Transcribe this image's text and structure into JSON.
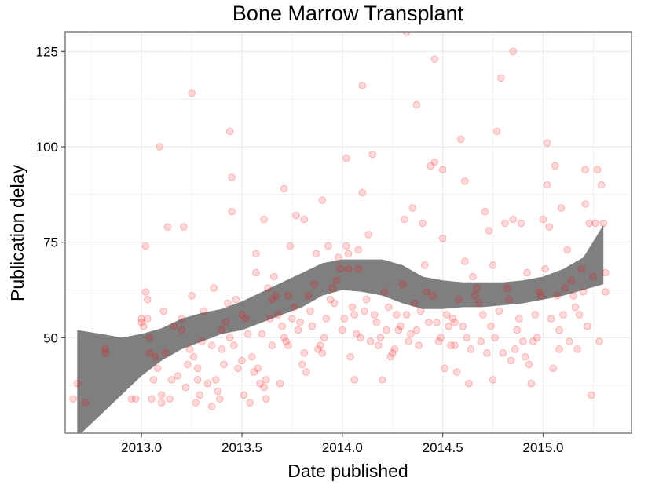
{
  "chart_data": {
    "type": "scatter",
    "title": "Bone Marrow Transplant",
    "xlabel": "Date published",
    "ylabel": "Publication delay",
    "xlim": [
      2012.62,
      2015.44
    ],
    "ylim": [
      25,
      130
    ],
    "x_ticks": [
      {
        "value": 2013.0,
        "label": "2013.0"
      },
      {
        "value": 2013.5,
        "label": "2013.5"
      },
      {
        "value": 2014.0,
        "label": "2014.0"
      },
      {
        "value": 2014.5,
        "label": "2014.5"
      },
      {
        "value": 2015.0,
        "label": "2015.0"
      }
    ],
    "y_ticks": [
      {
        "value": 50,
        "label": "50"
      },
      {
        "value": 75,
        "label": "75"
      },
      {
        "value": 100,
        "label": "100"
      },
      {
        "value": 125,
        "label": "125"
      }
    ],
    "grid": true,
    "legend": "none",
    "colors": {
      "points": "#ff0000",
      "band": "#7f7f7f",
      "panel_border": "#7f7f7f",
      "grid": "#ebebeb"
    },
    "smooth": {
      "x": [
        2012.68,
        2012.8,
        2012.9,
        2013.0,
        2013.1,
        2013.2,
        2013.3,
        2013.4,
        2013.5,
        2013.6,
        2013.7,
        2013.8,
        2013.9,
        2014.0,
        2014.1,
        2014.2,
        2014.3,
        2014.4,
        2014.5,
        2014.6,
        2014.7,
        2014.8,
        2014.9,
        2015.0,
        2015.1,
        2015.2,
        2015.3
      ],
      "lower": [
        24,
        30,
        35,
        40,
        44,
        47,
        49,
        51,
        52,
        54,
        56,
        58,
        61,
        62.5,
        62,
        61,
        59,
        57.5,
        57.5,
        58,
        58,
        58.5,
        59,
        60,
        61,
        62.5,
        64
      ],
      "upper": [
        52,
        51,
        50,
        51,
        52.5,
        55,
        56.5,
        57.5,
        59.5,
        62,
        64.5,
        67,
        69.5,
        70.5,
        70.5,
        70.5,
        69,
        66,
        65,
        64.5,
        64.5,
        64.5,
        65,
        66,
        68,
        71,
        79.5
      ]
    },
    "points": [
      [
        2012.66,
        34
      ],
      [
        2012.68,
        38
      ],
      [
        2012.72,
        33
      ],
      [
        2012.82,
        47
      ],
      [
        2012.82,
        46
      ],
      [
        2012.95,
        34
      ],
      [
        2012.97,
        34
      ],
      [
        2013.0,
        55
      ],
      [
        2013.0,
        54
      ],
      [
        2013.01,
        53
      ],
      [
        2013.02,
        74
      ],
      [
        2013.02,
        62
      ],
      [
        2013.03,
        60
      ],
      [
        2013.03,
        55
      ],
      [
        2013.04,
        50
      ],
      [
        2013.04,
        46
      ],
      [
        2013.05,
        34
      ],
      [
        2013.06,
        39
      ],
      [
        2013.07,
        45
      ],
      [
        2013.08,
        42
      ],
      [
        2013.09,
        100
      ],
      [
        2013.1,
        35
      ],
      [
        2013.1,
        33
      ],
      [
        2013.11,
        57
      ],
      [
        2013.12,
        46
      ],
      [
        2013.13,
        79
      ],
      [
        2013.14,
        34
      ],
      [
        2013.15,
        39
      ],
      [
        2013.16,
        53
      ],
      [
        2013.18,
        40
      ],
      [
        2013.2,
        55
      ],
      [
        2013.2,
        52
      ],
      [
        2013.21,
        79
      ],
      [
        2013.22,
        37
      ],
      [
        2013.23,
        43
      ],
      [
        2013.24,
        47
      ],
      [
        2013.25,
        61
      ],
      [
        2013.25,
        114
      ],
      [
        2013.26,
        45
      ],
      [
        2013.27,
        33
      ],
      [
        2013.28,
        39
      ],
      [
        2013.28,
        42
      ],
      [
        2013.29,
        35
      ],
      [
        2013.3,
        49
      ],
      [
        2013.31,
        57
      ],
      [
        2013.33,
        38
      ],
      [
        2013.35,
        48
      ],
      [
        2013.35,
        32
      ],
      [
        2013.36,
        63
      ],
      [
        2013.37,
        39
      ],
      [
        2013.38,
        36
      ],
      [
        2013.39,
        34
      ],
      [
        2013.4,
        52
      ],
      [
        2013.4,
        47
      ],
      [
        2013.41,
        43
      ],
      [
        2013.42,
        54
      ],
      [
        2013.43,
        59
      ],
      [
        2013.44,
        50
      ],
      [
        2013.44,
        104
      ],
      [
        2013.45,
        92
      ],
      [
        2013.45,
        83
      ],
      [
        2013.46,
        48
      ],
      [
        2013.47,
        60
      ],
      [
        2013.48,
        42
      ],
      [
        2013.5,
        56
      ],
      [
        2013.5,
        44
      ],
      [
        2013.51,
        35
      ],
      [
        2013.52,
        55
      ],
      [
        2013.53,
        51
      ],
      [
        2013.54,
        33
      ],
      [
        2013.55,
        45
      ],
      [
        2013.56,
        41
      ],
      [
        2013.57,
        72
      ],
      [
        2013.57,
        67
      ],
      [
        2013.58,
        42
      ],
      [
        2013.59,
        38
      ],
      [
        2013.6,
        51
      ],
      [
        2013.61,
        81
      ],
      [
        2013.61,
        37
      ],
      [
        2013.62,
        34
      ],
      [
        2013.62,
        39
      ],
      [
        2013.63,
        63
      ],
      [
        2013.64,
        55
      ],
      [
        2013.65,
        60
      ],
      [
        2013.65,
        48
      ],
      [
        2013.66,
        66
      ],
      [
        2013.67,
        61
      ],
      [
        2013.68,
        56
      ],
      [
        2013.69,
        38
      ],
      [
        2013.7,
        53
      ],
      [
        2013.71,
        50
      ],
      [
        2013.71,
        89
      ],
      [
        2013.72,
        49
      ],
      [
        2013.73,
        61
      ],
      [
        2013.73,
        48
      ],
      [
        2013.74,
        74
      ],
      [
        2013.75,
        55
      ],
      [
        2013.76,
        58
      ],
      [
        2013.77,
        82
      ],
      [
        2013.78,
        52
      ],
      [
        2013.79,
        54
      ],
      [
        2013.8,
        43
      ],
      [
        2013.81,
        46
      ],
      [
        2013.81,
        81
      ],
      [
        2013.82,
        41
      ],
      [
        2013.83,
        61
      ],
      [
        2013.84,
        57
      ],
      [
        2013.85,
        53
      ],
      [
        2013.86,
        64
      ],
      [
        2013.87,
        72
      ],
      [
        2013.88,
        47
      ],
      [
        2013.89,
        48
      ],
      [
        2013.9,
        46
      ],
      [
        2013.9,
        86
      ],
      [
        2013.91,
        50
      ],
      [
        2013.92,
        55
      ],
      [
        2013.93,
        74
      ],
      [
        2013.94,
        60
      ],
      [
        2013.95,
        63
      ],
      [
        2013.96,
        59
      ],
      [
        2013.97,
        65
      ],
      [
        2013.98,
        71
      ],
      [
        2013.99,
        68
      ],
      [
        2014.0,
        52
      ],
      [
        2014.01,
        55
      ],
      [
        2014.02,
        74
      ],
      [
        2014.02,
        97
      ],
      [
        2014.03,
        72
      ],
      [
        2014.03,
        68
      ],
      [
        2014.04,
        45
      ],
      [
        2014.05,
        58
      ],
      [
        2014.06,
        56
      ],
      [
        2014.06,
        39
      ],
      [
        2014.07,
        51
      ],
      [
        2014.08,
        73
      ],
      [
        2014.08,
        68
      ],
      [
        2014.09,
        50
      ],
      [
        2014.1,
        88
      ],
      [
        2014.1,
        116
      ],
      [
        2014.11,
        57
      ],
      [
        2014.12,
        60
      ],
      [
        2014.13,
        77
      ],
      [
        2014.14,
        49
      ],
      [
        2014.15,
        98
      ],
      [
        2014.16,
        56
      ],
      [
        2014.17,
        54
      ],
      [
        2014.18,
        48
      ],
      [
        2014.19,
        50
      ],
      [
        2014.2,
        39
      ],
      [
        2014.21,
        62
      ],
      [
        2014.22,
        52
      ],
      [
        2014.23,
        58
      ],
      [
        2014.24,
        45
      ],
      [
        2014.25,
        46
      ],
      [
        2014.26,
        47
      ],
      [
        2014.27,
        56
      ],
      [
        2014.28,
        52
      ],
      [
        2014.29,
        53
      ],
      [
        2014.3,
        64
      ],
      [
        2014.31,
        81
      ],
      [
        2014.32,
        56
      ],
      [
        2014.32,
        130
      ],
      [
        2014.33,
        49
      ],
      [
        2014.34,
        51
      ],
      [
        2014.35,
        84
      ],
      [
        2014.36,
        59
      ],
      [
        2014.37,
        52
      ],
      [
        2014.37,
        111
      ],
      [
        2014.38,
        48
      ],
      [
        2014.39,
        57
      ],
      [
        2014.4,
        80
      ],
      [
        2014.41,
        69
      ],
      [
        2014.42,
        62
      ],
      [
        2014.43,
        54
      ],
      [
        2014.44,
        95
      ],
      [
        2014.45,
        61
      ],
      [
        2014.46,
        123
      ],
      [
        2014.46,
        96
      ],
      [
        2014.47,
        54
      ],
      [
        2014.48,
        49
      ],
      [
        2014.49,
        50
      ],
      [
        2014.5,
        94
      ],
      [
        2014.5,
        76
      ],
      [
        2014.51,
        42
      ],
      [
        2014.52,
        56
      ],
      [
        2014.53,
        53
      ],
      [
        2014.54,
        48
      ],
      [
        2014.55,
        55
      ],
      [
        2014.56,
        54
      ],
      [
        2014.56,
        48
      ],
      [
        2014.57,
        41
      ],
      [
        2014.58,
        60
      ],
      [
        2014.59,
        102
      ],
      [
        2014.6,
        53
      ],
      [
        2014.61,
        91
      ],
      [
        2014.61,
        70
      ],
      [
        2014.62,
        50
      ],
      [
        2014.63,
        38
      ],
      [
        2014.64,
        47
      ],
      [
        2014.65,
        66
      ],
      [
        2014.66,
        61
      ],
      [
        2014.67,
        63
      ],
      [
        2014.68,
        59
      ],
      [
        2014.69,
        49
      ],
      [
        2014.7,
        56
      ],
      [
        2014.71,
        83
      ],
      [
        2014.72,
        46
      ],
      [
        2014.73,
        78
      ],
      [
        2014.74,
        53
      ],
      [
        2014.75,
        69
      ],
      [
        2014.75,
        39
      ],
      [
        2014.76,
        50
      ],
      [
        2014.77,
        104
      ],
      [
        2014.78,
        57
      ],
      [
        2014.79,
        118
      ],
      [
        2014.8,
        46
      ],
      [
        2014.81,
        80
      ],
      [
        2014.82,
        63
      ],
      [
        2014.83,
        60
      ],
      [
        2014.84,
        44
      ],
      [
        2014.85,
        125
      ],
      [
        2014.85,
        81
      ],
      [
        2014.86,
        47
      ],
      [
        2014.87,
        52
      ],
      [
        2014.88,
        55
      ],
      [
        2014.89,
        80
      ],
      [
        2014.9,
        49
      ],
      [
        2014.91,
        45
      ],
      [
        2014.92,
        67
      ],
      [
        2014.93,
        43
      ],
      [
        2014.94,
        38
      ],
      [
        2014.95,
        49
      ],
      [
        2014.96,
        56
      ],
      [
        2014.97,
        50
      ],
      [
        2014.98,
        62
      ],
      [
        2014.99,
        61
      ],
      [
        2015.0,
        81
      ],
      [
        2015.01,
        68
      ],
      [
        2015.02,
        101
      ],
      [
        2015.02,
        90
      ],
      [
        2015.03,
        79
      ],
      [
        2015.04,
        55
      ],
      [
        2015.05,
        42
      ],
      [
        2015.06,
        95
      ],
      [
        2015.07,
        61
      ],
      [
        2015.08,
        52
      ],
      [
        2015.08,
        47
      ],
      [
        2015.09,
        84
      ],
      [
        2015.1,
        56
      ],
      [
        2015.11,
        63
      ],
      [
        2015.12,
        73
      ],
      [
        2015.13,
        49
      ],
      [
        2015.14,
        65
      ],
      [
        2015.15,
        61
      ],
      [
        2015.16,
        58
      ],
      [
        2015.17,
        47
      ],
      [
        2015.18,
        56
      ],
      [
        2015.19,
        68
      ],
      [
        2015.2,
        62
      ],
      [
        2015.21,
        94
      ],
      [
        2015.21,
        85
      ],
      [
        2015.22,
        53
      ],
      [
        2015.23,
        80
      ],
      [
        2015.24,
        35
      ],
      [
        2015.25,
        66
      ],
      [
        2015.26,
        80
      ],
      [
        2015.27,
        94
      ],
      [
        2015.28,
        49
      ],
      [
        2015.29,
        90
      ],
      [
        2015.3,
        80
      ],
      [
        2015.31,
        67
      ],
      [
        2015.31,
        62
      ]
    ]
  }
}
